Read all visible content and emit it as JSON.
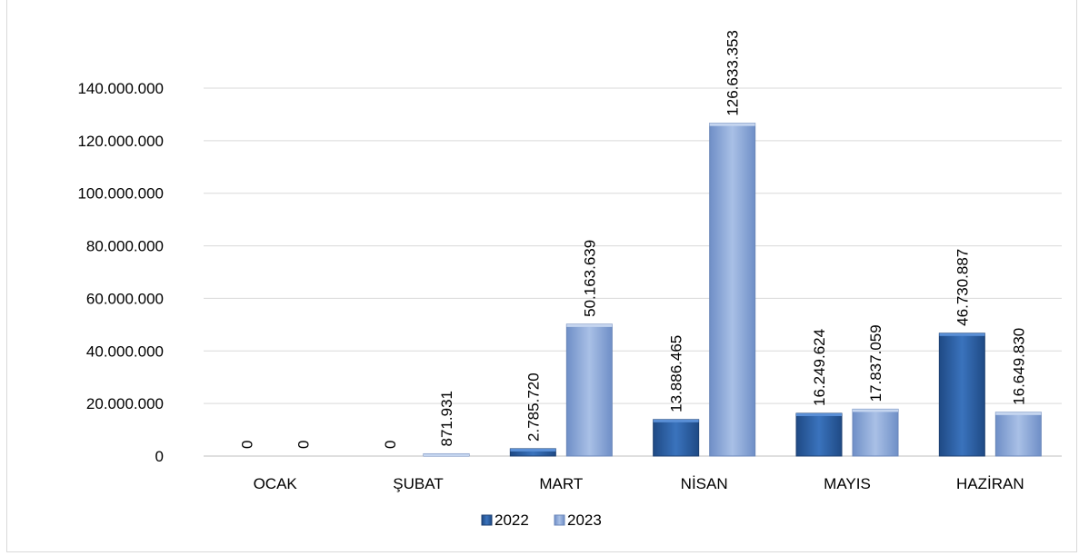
{
  "chart_data": {
    "type": "bar",
    "title": "",
    "xlabel": "",
    "ylabel": "",
    "categories": [
      "OCAK",
      "ŞUBAT",
      "MART",
      "NİSAN",
      "MAYIS",
      "HAZİRAN"
    ],
    "series": [
      {
        "name": "2022",
        "color": "#2e5f9e",
        "values": [
          0,
          0,
          2785720,
          13886465,
          16249624,
          46730887
        ],
        "labels": [
          "0",
          "0",
          "2.785.720",
          "13.886.465",
          "16.249.624",
          "46.730.887"
        ]
      },
      {
        "name": "2023",
        "color": "#8eaadb",
        "values": [
          0,
          871931,
          50163639,
          126633353,
          17837059,
          16649830
        ],
        "labels": [
          "0",
          "871.931",
          "50.163.639",
          "126.633.353",
          "17.837.059",
          "16.649.830"
        ]
      }
    ],
    "ylim": [
      0,
      140000000
    ],
    "yticks": [
      0,
      20000000,
      40000000,
      60000000,
      80000000,
      100000000,
      120000000,
      140000000
    ],
    "ytick_labels": [
      "0",
      "20.000.000",
      "40.000.000",
      "60.000.000",
      "80.000.000",
      "100.000.000",
      "120.000.000",
      "140.000.000"
    ],
    "grid": true,
    "legend_position": "bottom"
  }
}
